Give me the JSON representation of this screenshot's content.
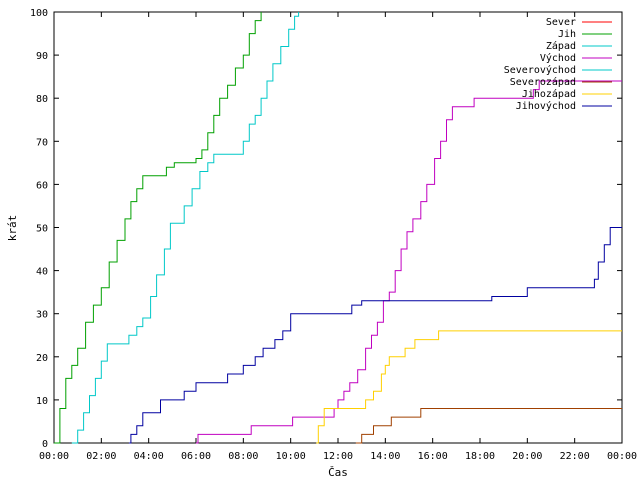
{
  "chart_data": {
    "type": "line",
    "title": "",
    "xlabel": "Čas",
    "ylabel": "krát",
    "xlim": [
      "00:00",
      "24:00"
    ],
    "ylim": [
      0,
      100
    ],
    "grid": false,
    "legend_position": "top-right",
    "x_ticks": [
      "00:00",
      "02:00",
      "04:00",
      "06:00",
      "08:00",
      "10:00",
      "12:00",
      "14:00",
      "16:00",
      "18:00",
      "20:00",
      "22:00",
      "00:00"
    ],
    "y_ticks": [
      0,
      10,
      20,
      30,
      40,
      50,
      60,
      70,
      80,
      90,
      100
    ],
    "step": true,
    "series": [
      {
        "name": "Sever",
        "color": "#ff0000",
        "points": []
      },
      {
        "name": "Jih",
        "color": "#00a000",
        "points": [
          [
            "00:00",
            0
          ],
          [
            "00:15",
            8
          ],
          [
            "00:30",
            15
          ],
          [
            "00:45",
            18
          ],
          [
            "01:00",
            22
          ],
          [
            "01:20",
            28
          ],
          [
            "01:40",
            32
          ],
          [
            "02:00",
            36
          ],
          [
            "02:20",
            42
          ],
          [
            "02:40",
            47
          ],
          [
            "03:00",
            52
          ],
          [
            "03:15",
            56
          ],
          [
            "03:30",
            59
          ],
          [
            "03:45",
            62
          ],
          [
            "04:30",
            62
          ],
          [
            "04:45",
            64
          ],
          [
            "05:05",
            65
          ],
          [
            "06:00",
            66
          ],
          [
            "06:15",
            68
          ],
          [
            "06:30",
            72
          ],
          [
            "06:45",
            76
          ],
          [
            "07:00",
            80
          ],
          [
            "07:20",
            83
          ],
          [
            "07:40",
            87
          ],
          [
            "08:00",
            90
          ],
          [
            "08:15",
            95
          ],
          [
            "08:30",
            98
          ],
          [
            "08:45",
            100
          ]
        ]
      },
      {
        "name": "Západ",
        "color": "#00c8c8",
        "points": [
          [
            "00:45",
            0
          ],
          [
            "01:00",
            3
          ],
          [
            "01:15",
            7
          ],
          [
            "01:30",
            11
          ],
          [
            "01:45",
            15
          ],
          [
            "02:00",
            19
          ],
          [
            "02:15",
            23
          ],
          [
            "03:00",
            23
          ],
          [
            "03:10",
            25
          ],
          [
            "03:30",
            27
          ],
          [
            "03:45",
            29
          ],
          [
            "04:05",
            34
          ],
          [
            "04:20",
            39
          ],
          [
            "04:40",
            45
          ],
          [
            "04:55",
            51
          ],
          [
            "05:15",
            51
          ],
          [
            "05:30",
            55
          ],
          [
            "05:50",
            59
          ],
          [
            "06:10",
            63
          ],
          [
            "06:30",
            65
          ],
          [
            "06:45",
            67
          ],
          [
            "07:10",
            67
          ],
          [
            "07:35",
            67
          ],
          [
            "08:00",
            70
          ],
          [
            "08:15",
            74
          ],
          [
            "08:30",
            76
          ],
          [
            "08:45",
            80
          ],
          [
            "09:00",
            84
          ],
          [
            "09:15",
            88
          ],
          [
            "09:35",
            92
          ],
          [
            "09:55",
            96
          ],
          [
            "10:10",
            99
          ],
          [
            "10:20",
            100
          ]
        ]
      },
      {
        "name": "Východ",
        "color": "#c000c0",
        "points": [
          [
            "06:00",
            0
          ],
          [
            "06:05",
            2
          ],
          [
            "08:15",
            2
          ],
          [
            "08:20",
            4
          ],
          [
            "10:00",
            4
          ],
          [
            "10:05",
            6
          ],
          [
            "11:40",
            6
          ],
          [
            "11:50",
            8
          ],
          [
            "12:00",
            10
          ],
          [
            "12:15",
            12
          ],
          [
            "12:30",
            14
          ],
          [
            "12:50",
            17
          ],
          [
            "13:10",
            22
          ],
          [
            "13:25",
            25
          ],
          [
            "13:40",
            28
          ],
          [
            "13:55",
            33
          ],
          [
            "14:10",
            35
          ],
          [
            "14:25",
            40
          ],
          [
            "14:40",
            45
          ],
          [
            "14:55",
            49
          ],
          [
            "15:10",
            52
          ],
          [
            "15:30",
            56
          ],
          [
            "15:45",
            60
          ],
          [
            "16:05",
            66
          ],
          [
            "16:20",
            70
          ],
          [
            "16:35",
            75
          ],
          [
            "16:50",
            78
          ],
          [
            "17:30",
            78
          ],
          [
            "17:45",
            80
          ],
          [
            "20:00",
            80
          ],
          [
            "20:15",
            82
          ],
          [
            "20:30",
            84
          ],
          [
            "21:00",
            84
          ],
          [
            "24:00",
            84
          ]
        ]
      },
      {
        "name": "Severovýchod",
        "color": "#00c8c8",
        "points": []
      },
      {
        "name": "Severozápad",
        "color": "#a04000",
        "points": [
          [
            "12:45",
            0
          ],
          [
            "13:00",
            2
          ],
          [
            "13:30",
            4
          ],
          [
            "14:15",
            6
          ],
          [
            "15:30",
            8
          ],
          [
            "24:00",
            8
          ]
        ]
      },
      {
        "name": "Jihozápad",
        "color": "#ffd000",
        "points": [
          [
            "11:05",
            0
          ],
          [
            "11:10",
            4
          ],
          [
            "11:25",
            8
          ],
          [
            "13:05",
            8
          ],
          [
            "13:10",
            10
          ],
          [
            "13:30",
            12
          ],
          [
            "13:50",
            16
          ],
          [
            "14:00",
            18
          ],
          [
            "14:10",
            20
          ],
          [
            "14:50",
            22
          ],
          [
            "15:15",
            24
          ],
          [
            "16:15",
            26
          ],
          [
            "24:00",
            26
          ]
        ]
      },
      {
        "name": "Jihovýchod",
        "color": "#0000a0",
        "points": [
          [
            "03:10",
            0
          ],
          [
            "03:15",
            2
          ],
          [
            "03:30",
            4
          ],
          [
            "03:45",
            7
          ],
          [
            "04:30",
            10
          ],
          [
            "05:30",
            12
          ],
          [
            "06:00",
            14
          ],
          [
            "07:20",
            16
          ],
          [
            "08:00",
            18
          ],
          [
            "08:30",
            20
          ],
          [
            "08:50",
            22
          ],
          [
            "09:20",
            24
          ],
          [
            "09:40",
            26
          ],
          [
            "10:00",
            30
          ],
          [
            "12:20",
            30
          ],
          [
            "12:35",
            32
          ],
          [
            "13:00",
            33
          ],
          [
            "18:30",
            34
          ],
          [
            "20:00",
            36
          ],
          [
            "22:40",
            36
          ],
          [
            "22:50",
            38
          ],
          [
            "23:00",
            42
          ],
          [
            "23:15",
            46
          ],
          [
            "23:30",
            50
          ],
          [
            "24:00",
            50
          ]
        ]
      }
    ]
  }
}
